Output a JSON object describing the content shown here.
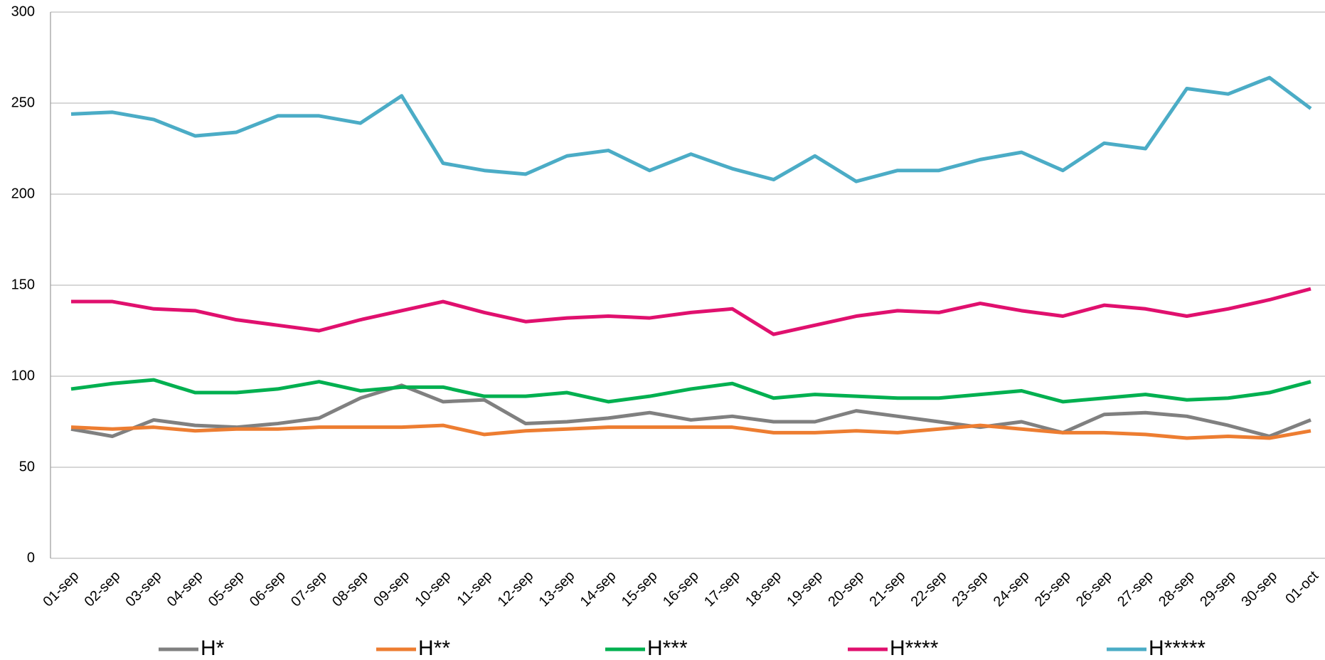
{
  "chart_data": {
    "type": "line",
    "categories": [
      "01-sep",
      "02-sep",
      "03-sep",
      "04-sep",
      "05-sep",
      "06-sep",
      "07-sep",
      "08-sep",
      "09-sep",
      "10-sep",
      "11-sep",
      "12-sep",
      "13-sep",
      "14-sep",
      "15-sep",
      "16-sep",
      "17-sep",
      "18-sep",
      "19-sep",
      "20-sep",
      "21-sep",
      "22-sep",
      "23-sep",
      "24-sep",
      "25-sep",
      "26-sep",
      "27-sep",
      "28-sep",
      "29-sep",
      "30-sep",
      "01-oct"
    ],
    "series": [
      {
        "name": "H*",
        "color": "#808080",
        "values": [
          71,
          67,
          76,
          73,
          72,
          74,
          77,
          88,
          95,
          86,
          87,
          74,
          75,
          77,
          80,
          76,
          78,
          75,
          75,
          81,
          78,
          75,
          72,
          75,
          69,
          79,
          80,
          78,
          73,
          67,
          76
        ]
      },
      {
        "name": "H**",
        "color": "#ed7d31",
        "values": [
          72,
          71,
          72,
          70,
          71,
          71,
          72,
          72,
          72,
          73,
          68,
          70,
          71,
          72,
          72,
          72,
          72,
          69,
          69,
          70,
          69,
          71,
          73,
          71,
          69,
          69,
          68,
          66,
          67,
          66,
          70
        ]
      },
      {
        "name": "H***",
        "color": "#00b050",
        "values": [
          93,
          96,
          98,
          91,
          91,
          93,
          97,
          92,
          94,
          94,
          89,
          89,
          91,
          86,
          89,
          93,
          96,
          88,
          90,
          89,
          88,
          88,
          90,
          92,
          86,
          88,
          90,
          87,
          88,
          91,
          97
        ]
      },
      {
        "name": "H****",
        "color": "#e0106e",
        "values": [
          141,
          141,
          137,
          136,
          131,
          128,
          125,
          131,
          136,
          141,
          135,
          130,
          132,
          133,
          132,
          135,
          137,
          123,
          128,
          133,
          136,
          135,
          140,
          136,
          133,
          139,
          137,
          133,
          137,
          142,
          148
        ]
      },
      {
        "name": "H*****",
        "color": "#4bacc6",
        "values": [
          244,
          245,
          241,
          232,
          234,
          243,
          243,
          239,
          254,
          217,
          213,
          211,
          221,
          224,
          213,
          222,
          214,
          208,
          221,
          207,
          213,
          213,
          219,
          223,
          213,
          228,
          225,
          258,
          255,
          264,
          247
        ]
      }
    ],
    "ylim": [
      0,
      300
    ],
    "yticks": [
      0,
      50,
      100,
      150,
      200,
      250,
      300
    ],
    "grid": true
  }
}
